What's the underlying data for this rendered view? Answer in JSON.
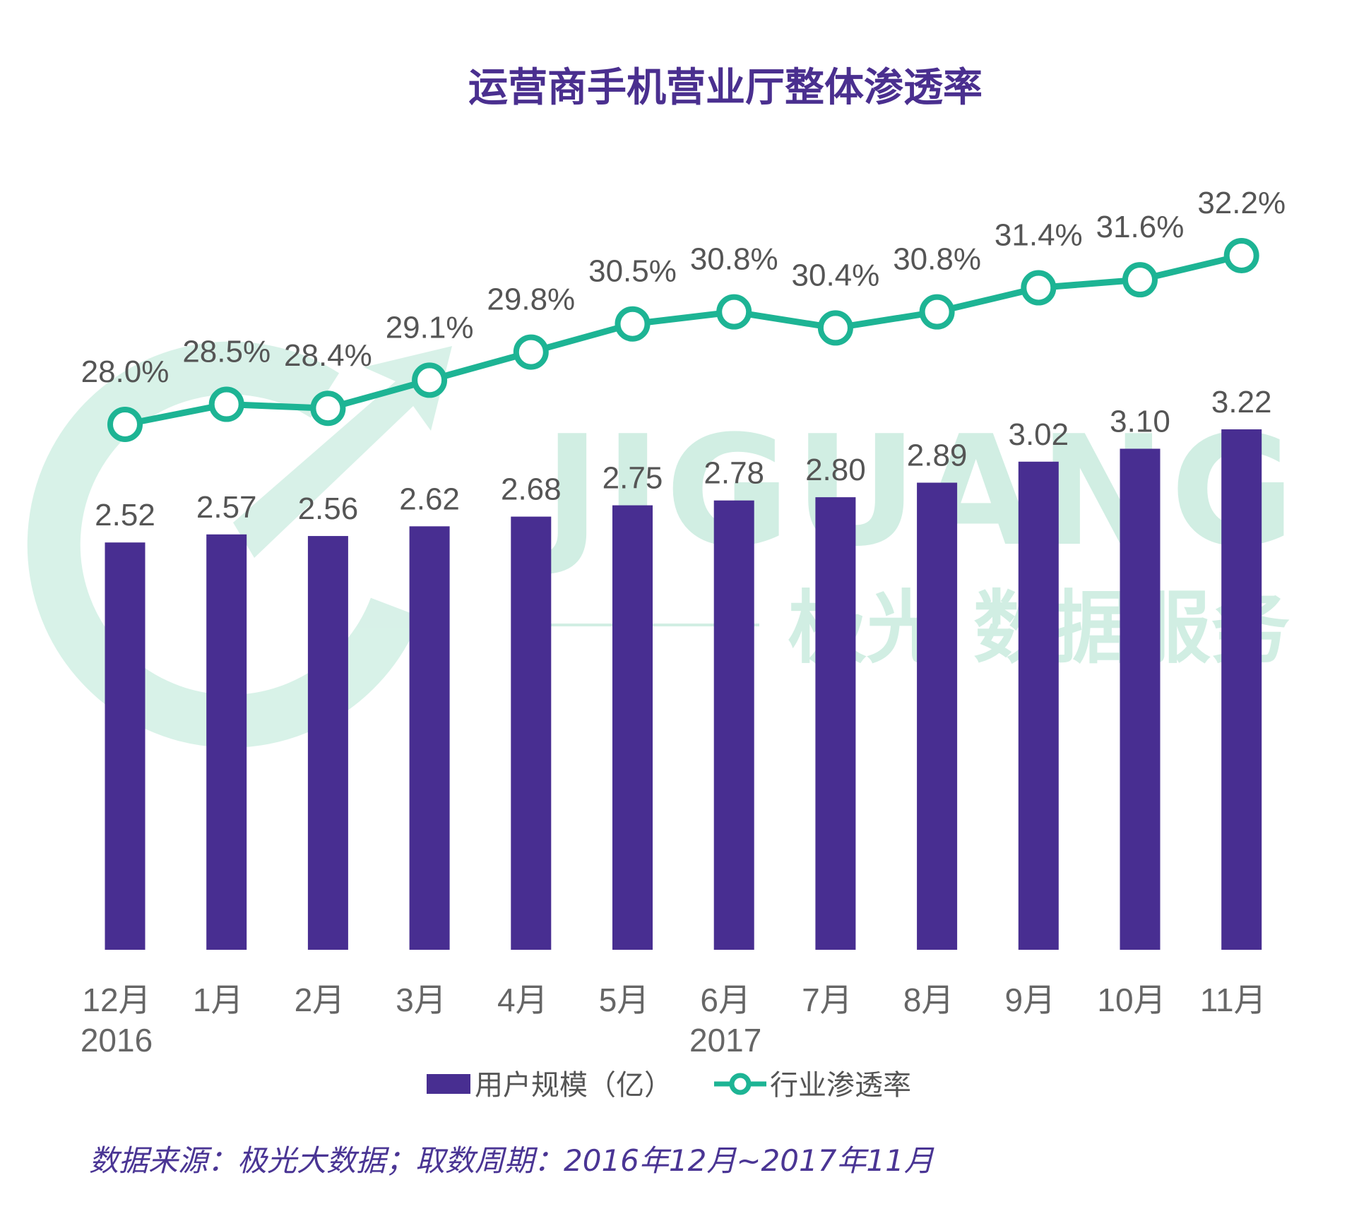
{
  "title": "运营商手机营业厅整体渗透率",
  "watermark": {
    "brand": "JIGUANG",
    "tagline": "极光 数据服务",
    "color": "#c8ecdf"
  },
  "legend": {
    "bars": "用户规模（亿）",
    "line": "行业渗透率"
  },
  "source_note": "数据来源：极光大数据；取数周期：2016年12月~2017年11月",
  "colors": {
    "bar": "#482e91",
    "line": "#1db494",
    "title": "#4a2f8f",
    "source": "#4a3594"
  },
  "chart_data": {
    "type": "bar",
    "title": "运营商手机营业厅整体渗透率",
    "categories": [
      "12月",
      "1月",
      "2月",
      "3月",
      "4月",
      "5月",
      "6月",
      "7月",
      "8月",
      "9月",
      "10月",
      "11月"
    ],
    "year_labels": [
      {
        "category": "12月",
        "label": "2016"
      },
      {
        "category": "6月",
        "label": "2017"
      }
    ],
    "series": [
      {
        "name": "用户规模（亿）",
        "kind": "bar",
        "values": [
          2.52,
          2.57,
          2.56,
          2.62,
          2.68,
          2.75,
          2.78,
          2.8,
          2.89,
          3.02,
          3.1,
          3.22
        ],
        "labels": [
          "2.52",
          "2.57",
          "2.56",
          "2.62",
          "2.68",
          "2.75",
          "2.78",
          "2.80",
          "2.89",
          "3.02",
          "3.10",
          "3.22"
        ]
      },
      {
        "name": "行业渗透率",
        "kind": "line",
        "values": [
          28.0,
          28.5,
          28.4,
          29.1,
          29.8,
          30.5,
          30.8,
          30.4,
          30.8,
          31.4,
          31.6,
          32.2
        ],
        "labels": [
          "28.0%",
          "28.5%",
          "28.4%",
          "29.1%",
          "29.8%",
          "30.5%",
          "30.8%",
          "30.4%",
          "30.8%",
          "31.4%",
          "31.6%",
          "32.2%"
        ]
      }
    ],
    "bar_axis": {
      "min": 0,
      "max": 3.22
    },
    "line_axis": {
      "min": 28.0,
      "max": 32.2
    },
    "gridlines": false,
    "legend_position": "bottom-center"
  }
}
